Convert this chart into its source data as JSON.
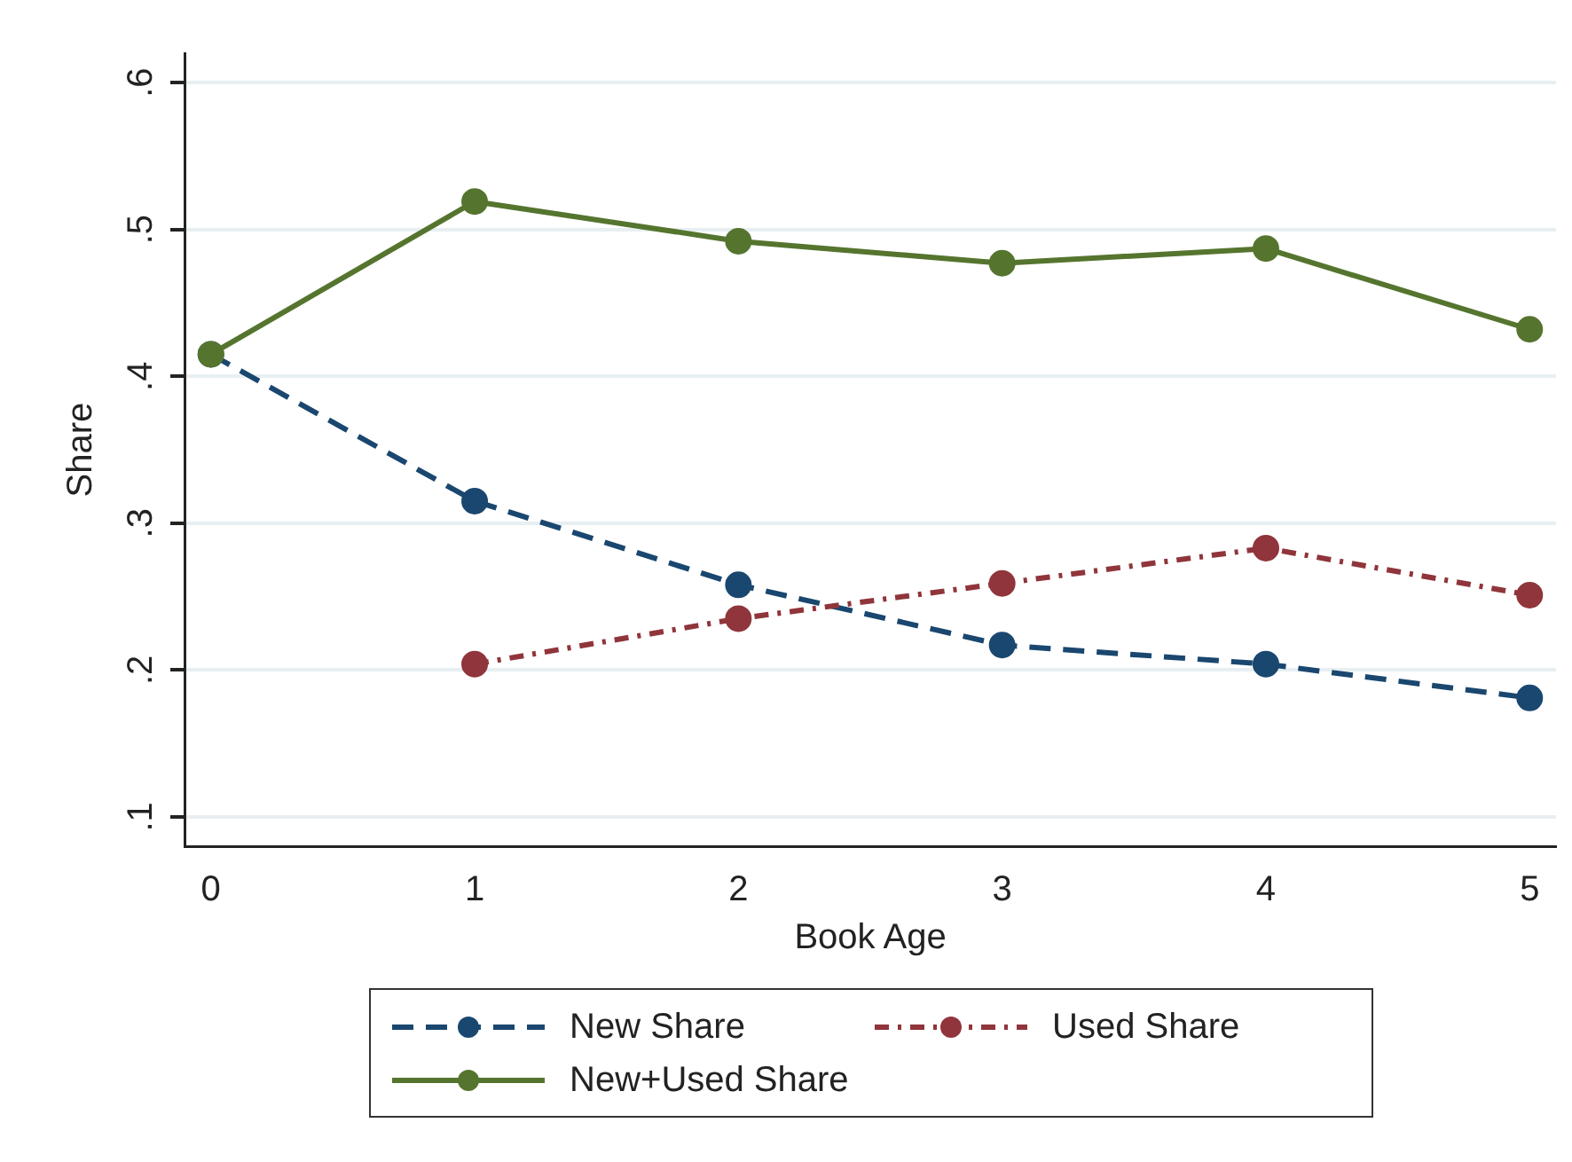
{
  "chart_data": {
    "type": "line",
    "xlabel": "Book Age",
    "ylabel": "Share",
    "x": [
      0,
      1,
      2,
      3,
      4,
      5
    ],
    "xlim": [
      -0.1,
      5.1
    ],
    "xticks": [
      0,
      1,
      2,
      3,
      4,
      5
    ],
    "ylim": [
      0.08,
      0.62
    ],
    "yticks": [
      {
        "value": 0.1,
        "label": ".1"
      },
      {
        "value": 0.2,
        "label": ".2"
      },
      {
        "value": 0.3,
        "label": ".3"
      },
      {
        "value": 0.4,
        "label": ".4"
      },
      {
        "value": 0.5,
        "label": ".5"
      },
      {
        "value": 0.6,
        "label": ".6"
      }
    ],
    "grid": "y",
    "legend": "bottom",
    "marker": "circle",
    "series": [
      {
        "name": "New Share",
        "color": "#1a476f",
        "line_style": "dashed",
        "values": [
          0.415,
          0.315,
          0.258,
          0.217,
          0.204,
          0.181
        ]
      },
      {
        "name": "Used Share",
        "color": "#90353b",
        "line_style": "dashdot",
        "values": [
          null,
          0.204,
          0.235,
          0.259,
          0.283,
          0.251
        ]
      },
      {
        "name": "New+Used Share",
        "color": "#55752f",
        "line_style": "solid",
        "values": [
          0.415,
          0.519,
          0.492,
          0.477,
          0.487,
          0.432
        ]
      }
    ]
  }
}
